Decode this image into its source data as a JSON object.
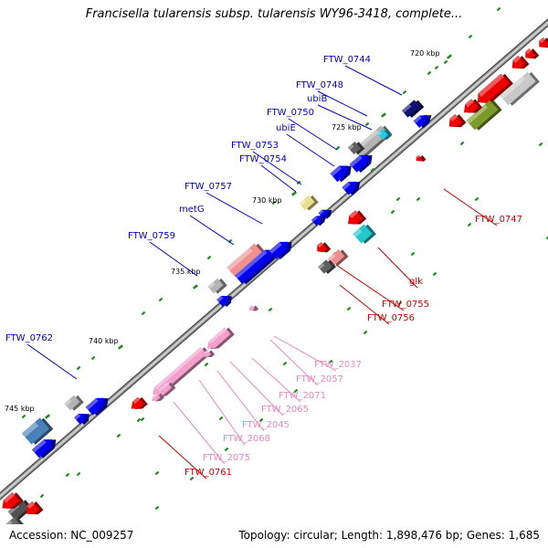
{
  "title": "Francisella tularensis subsp. tularensis WY96-3418, complete...",
  "footer": {
    "accession": "Accession: NC_009257",
    "summary": "Topology: circular; Length: 1,898,476 bp; Genes: 1,685"
  },
  "colors": {
    "backbone": "#888888",
    "forward_label": "#0000cc",
    "reverse_label": "#cc0000",
    "rna_label": "#ee88bb",
    "tick": "#1e8b1e"
  },
  "scale_labels": [
    "720 kbp",
    "725 kbp",
    "730 kbp",
    "735 kbp",
    "740 kbp",
    "745 kbp"
  ],
  "gene_labels": {
    "forward": [
      "FTW_0744",
      "FTW_0748",
      "ubiB",
      "FTW_0750",
      "ubiE",
      "FTW_0753",
      "FTW_0754",
      "FTW_0757",
      "metG",
      "FTW_0759",
      "FTW_0762"
    ],
    "reverse": [
      "FTW_0747",
      "glk",
      "FTW_0755",
      "FTW_0756",
      "FTW_0761"
    ],
    "rna": [
      "FTW_2037",
      "FTW_2057",
      "FTW_2071",
      "FTW_2065",
      "FTW_2045",
      "FTW_2068",
      "FTW_2075"
    ]
  }
}
